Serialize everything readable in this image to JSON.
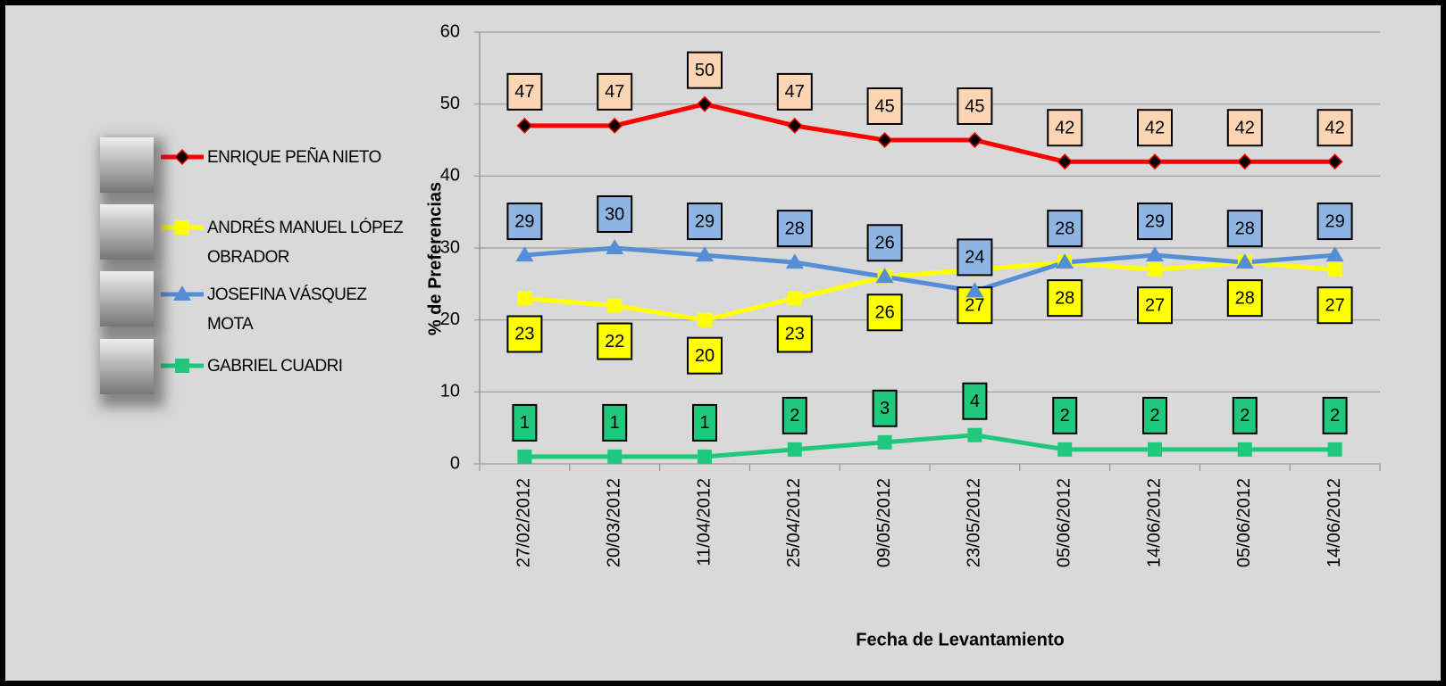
{
  "chart_data": {
    "type": "line",
    "y_label": "% de Preferencias",
    "x_label": "Fecha de Levantamiento",
    "categories": [
      "27/02/2012",
      "20/03/2012",
      "11/04/2012",
      "25/04/2012",
      "09/05/2012",
      "23/05/2012",
      "05/06/2012",
      "14/06/2012",
      "05/06/2012",
      "14/06/2012"
    ],
    "series": [
      {
        "name": "ENRIQUE PEÑA NIETO",
        "color": "#ff0000",
        "marker": "diamond",
        "label_color": "#fcd5b4",
        "label_side": "above",
        "values": [
          47,
          47,
          50,
          47,
          45,
          45,
          42,
          42,
          42,
          42
        ]
      },
      {
        "name": "ANDRÉS MANUEL LÓPEZ OBRADOR",
        "color": "#ffff00",
        "marker": "square",
        "label_color": "#ffff00",
        "label_side": "below",
        "values": [
          23,
          22,
          20,
          23,
          26,
          27,
          28,
          27,
          28,
          27
        ]
      },
      {
        "name": "JOSEFINA VÁSQUEZ MOTA",
        "color": "#558ed5",
        "marker": "triangle",
        "label_color": "#8db4e2",
        "label_side": "above",
        "values": [
          29,
          30,
          29,
          28,
          26,
          24,
          28,
          29,
          28,
          29
        ]
      },
      {
        "name": "GABRIEL CUADRI",
        "color": "#1fc87c",
        "marker": "square",
        "label_color": "#1fc87c",
        "label_side": "above",
        "values": [
          1,
          1,
          1,
          2,
          3,
          4,
          2,
          2,
          2,
          2
        ]
      }
    ],
    "ylim": [
      0,
      60
    ],
    "yticks": [
      0,
      10,
      20,
      30,
      40,
      50,
      60
    ],
    "grid": true,
    "legend": "left"
  }
}
